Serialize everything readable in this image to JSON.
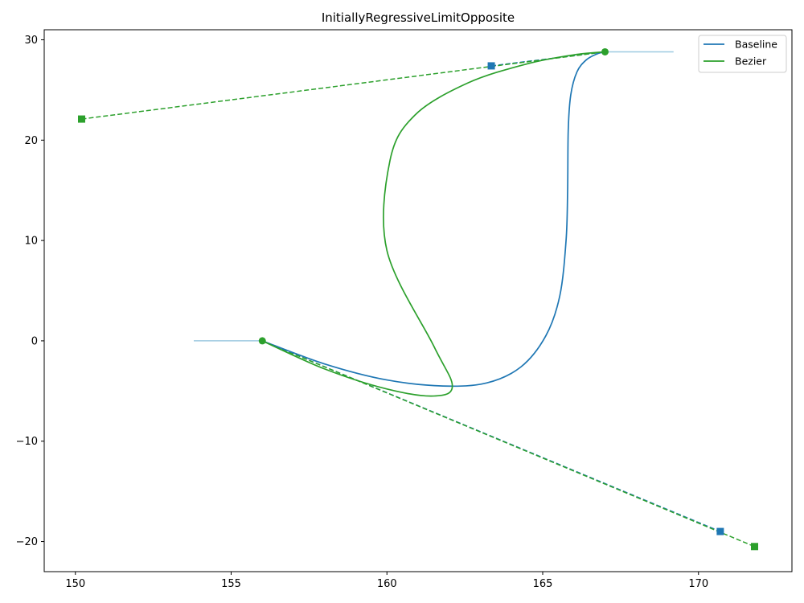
{
  "chart_data": {
    "type": "line",
    "title": "InitiallyRegressiveLimitOpposite",
    "xlabel": "",
    "ylabel": "",
    "xlim": [
      149.0,
      173.0
    ],
    "ylim": [
      -23.0,
      31.0
    ],
    "xticks": [
      150,
      155,
      160,
      165,
      170
    ],
    "yticks": [
      -20,
      -10,
      0,
      10,
      20,
      30
    ],
    "grid": false,
    "legend_position": "top-right",
    "colors": {
      "baseline": "#1f77b4",
      "bezier": "#2ca02c",
      "guide": "#9ecae1"
    },
    "guide_lines": [
      {
        "x": [
          153.8,
          156.0
        ],
        "y": [
          0,
          0
        ]
      },
      {
        "x": [
          167.0,
          169.2
        ],
        "y": [
          28.8,
          28.8
        ]
      }
    ],
    "series": [
      {
        "name": "Baseline",
        "style": "solid",
        "x": [
          156.0,
          158.0,
          160.0,
          161.8,
          163.2,
          164.3,
          165.1,
          165.55,
          165.75,
          165.8,
          165.82,
          165.9,
          166.1,
          166.4,
          166.75,
          167.0
        ],
        "y": [
          0.0,
          -2.3,
          -3.9,
          -4.5,
          -4.2,
          -2.6,
          0.5,
          4.5,
          10.0,
          15.0,
          21.0,
          24.5,
          26.8,
          28.0,
          28.6,
          28.8
        ]
      },
      {
        "name": "Bezier",
        "style": "solid",
        "x": [
          156.0,
          158.0,
          160.0,
          161.5,
          162.1,
          161.5,
          160.0,
          160.1,
          160.9,
          162.6,
          164.5,
          166.0,
          167.0
        ],
        "y": [
          0.0,
          -2.8,
          -4.8,
          -5.5,
          -4.5,
          -0.5,
          9.0,
          18.0,
          22.5,
          25.7,
          27.6,
          28.5,
          28.8
        ]
      }
    ],
    "control_polygons": [
      {
        "color": "baseline",
        "x": [
          156.0,
          170.7
        ],
        "y": [
          0.0,
          -19.0
        ]
      },
      {
        "color": "baseline",
        "x": [
          163.35,
          167.0
        ],
        "y": [
          27.4,
          28.8
        ]
      },
      {
        "color": "bezier",
        "x": [
          156.0,
          171.8
        ],
        "y": [
          0.0,
          -20.5
        ]
      },
      {
        "color": "bezier",
        "x": [
          150.2,
          167.0
        ],
        "y": [
          22.1,
          28.8
        ]
      }
    ],
    "endpoints": [
      {
        "color": "bezier",
        "x": 156.0,
        "y": 0.0
      },
      {
        "color": "bezier",
        "x": 167.0,
        "y": 28.8
      }
    ],
    "control_points": [
      {
        "color": "baseline",
        "x": 170.7,
        "y": -19.0
      },
      {
        "color": "baseline",
        "x": 163.35,
        "y": 27.4
      },
      {
        "color": "bezier",
        "x": 171.8,
        "y": -20.5
      },
      {
        "color": "bezier",
        "x": 150.2,
        "y": 22.1
      }
    ]
  }
}
